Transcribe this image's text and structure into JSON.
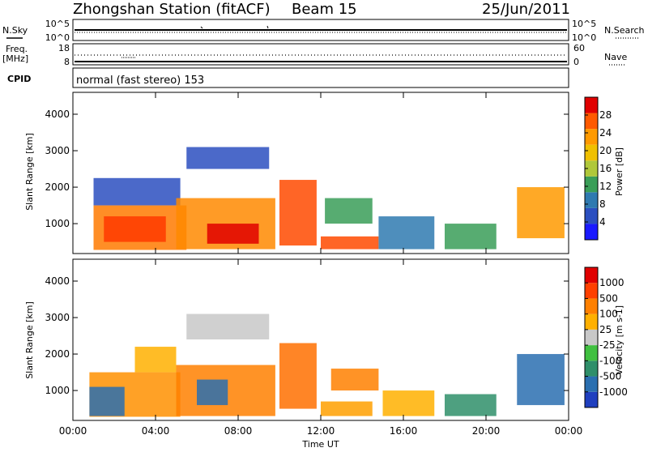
{
  "header": {
    "station": "Zhongshan Station (fitACF)",
    "beam": "Beam 15",
    "date": "25/Jun/2011"
  },
  "sky_panel": {
    "left_label": "N.Sky",
    "left_ticks": [
      "10^5",
      "10^0"
    ],
    "right_label": "N.Search",
    "right_ticks": [
      "10^5",
      "10^0"
    ]
  },
  "freq_panel": {
    "left_label_1": "Freq.",
    "left_label_2": "[MHz]",
    "left_ticks": [
      "18",
      "8"
    ],
    "right_label": "Nave",
    "right_ticks": [
      "60",
      "0"
    ]
  },
  "cpid_panel": {
    "label": "CPID",
    "text": "normal (fast stereo) 153"
  },
  "chart_data": [
    {
      "type": "heatmap",
      "name": "power",
      "ylabel": "Slant Range [km]",
      "xlabel": "",
      "ylim": [
        180,
        4600
      ],
      "xlim_hours": [
        0,
        24
      ],
      "y_ticks": [
        "1000",
        "2000",
        "3000",
        "4000"
      ],
      "colorbar_label": "Power [dB]",
      "colorbar_ticks": [
        "28",
        "24",
        "20",
        "16",
        "12",
        "8",
        "4"
      ],
      "colorscale": [
        "#1a1aff",
        "#2b4fc0",
        "#2f7ab0",
        "#3a9e58",
        "#b0c83a",
        "#f0c000",
        "#ff9a00",
        "#ff5a00",
        "#e00000"
      ],
      "bands": [
        {
          "t0": 1.0,
          "t1": 5.2,
          "r0": 1500,
          "r1": 2250,
          "color": "#2b4fc0"
        },
        {
          "t0": 1.0,
          "t1": 5.5,
          "r0": 280,
          "r1": 1500,
          "color": "#ff7a00"
        },
        {
          "t0": 1.5,
          "t1": 4.5,
          "r0": 500,
          "r1": 1200,
          "color": "#ff3a00"
        },
        {
          "t0": 5.5,
          "t1": 9.5,
          "r0": 2500,
          "r1": 3100,
          "color": "#2b4fc0"
        },
        {
          "t0": 5.0,
          "t1": 9.8,
          "r0": 300,
          "r1": 1700,
          "color": "#ff8a00"
        },
        {
          "t0": 6.5,
          "t1": 9.0,
          "r0": 450,
          "r1": 1000,
          "color": "#e00000"
        },
        {
          "t0": 10.0,
          "t1": 11.8,
          "r0": 400,
          "r1": 2200,
          "color": "#ff4a00"
        },
        {
          "t0": 12.0,
          "t1": 14.8,
          "r0": 300,
          "r1": 650,
          "color": "#ff4a00"
        },
        {
          "t0": 12.2,
          "t1": 14.5,
          "r0": 1000,
          "r1": 1700,
          "color": "#3a9e58"
        },
        {
          "t0": 14.8,
          "t1": 17.5,
          "r0": 300,
          "r1": 1200,
          "color": "#2f7ab0"
        },
        {
          "t0": 18.0,
          "t1": 20.5,
          "r0": 300,
          "r1": 1000,
          "color": "#3a9e58"
        },
        {
          "t0": 21.5,
          "t1": 23.8,
          "r0": 600,
          "r1": 2000,
          "color": "#ff9a00"
        }
      ]
    },
    {
      "type": "heatmap",
      "name": "velocity",
      "ylabel": "Slant Range [km]",
      "xlabel": "Time UT",
      "ylim": [
        180,
        4600
      ],
      "xlim_hours": [
        0,
        24
      ],
      "y_ticks": [
        "1000",
        "2000",
        "3000",
        "4000"
      ],
      "x_ticks": [
        "00:00",
        "04:00",
        "08:00",
        "12:00",
        "16:00",
        "20:00",
        "00:00"
      ],
      "colorbar_label": "Velocity [m s-1]",
      "colorbar_ticks": [
        "1000",
        "500",
        "100",
        "25",
        "-25",
        "-100",
        "-500",
        "-1000"
      ],
      "colorscale": [
        "#1f3fbf",
        "#2a6fb0",
        "#2f8f6a",
        "#40c040",
        "#c8c8c8",
        "#ffb000",
        "#ff8000",
        "#ff4000",
        "#e00000"
      ],
      "bands": [
        {
          "t0": 0.8,
          "t1": 5.2,
          "r0": 280,
          "r1": 1500,
          "color": "#ff9000"
        },
        {
          "t0": 0.8,
          "t1": 2.5,
          "r0": 300,
          "r1": 1100,
          "color": "#2a6fb0"
        },
        {
          "t0": 3.0,
          "t1": 5.0,
          "r0": 1500,
          "r1": 2200,
          "color": "#ffb000"
        },
        {
          "t0": 5.5,
          "t1": 9.5,
          "r0": 2400,
          "r1": 3100,
          "color": "#c8c8c8"
        },
        {
          "t0": 5.0,
          "t1": 9.8,
          "r0": 300,
          "r1": 1700,
          "color": "#ff8000"
        },
        {
          "t0": 6.0,
          "t1": 7.5,
          "r0": 600,
          "r1": 1300,
          "color": "#2a6fb0"
        },
        {
          "t0": 10.0,
          "t1": 11.8,
          "r0": 500,
          "r1": 2300,
          "color": "#ff7000"
        },
        {
          "t0": 12.0,
          "t1": 14.5,
          "r0": 300,
          "r1": 700,
          "color": "#ffa000"
        },
        {
          "t0": 12.5,
          "t1": 14.8,
          "r0": 1000,
          "r1": 1600,
          "color": "#ff8000"
        },
        {
          "t0": 15.0,
          "t1": 17.5,
          "r0": 300,
          "r1": 1000,
          "color": "#ffb000"
        },
        {
          "t0": 18.0,
          "t1": 20.5,
          "r0": 300,
          "r1": 900,
          "color": "#2f8f6a"
        },
        {
          "t0": 21.5,
          "t1": 23.8,
          "r0": 600,
          "r1": 2000,
          "color": "#2a6fb0"
        }
      ]
    }
  ]
}
